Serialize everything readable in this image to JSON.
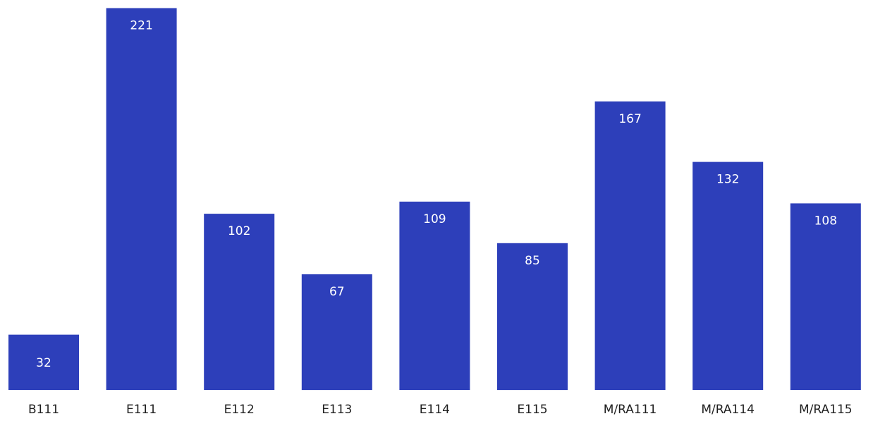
{
  "chart_data": {
    "type": "bar",
    "categories": [
      "B111",
      "E111",
      "E112",
      "E113",
      "E114",
      "E115",
      "M/RA111",
      "M/RA114",
      "M/RA115"
    ],
    "values": [
      32,
      221,
      102,
      67,
      109,
      85,
      167,
      132,
      108
    ],
    "data_labels": true,
    "grid": false,
    "legend": "none",
    "colors": {
      "bar": "#2d3fba",
      "label_on_bar": "#ffffff",
      "category_label": "#1f1f1f"
    }
  }
}
